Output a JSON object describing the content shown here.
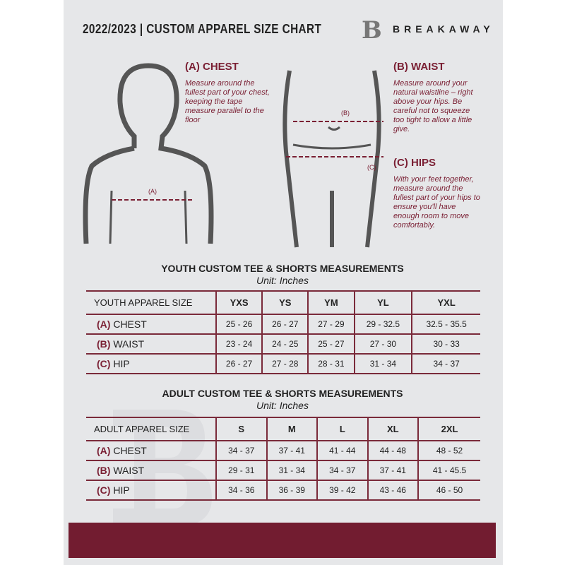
{
  "header": {
    "title": "2022/2023 | CUSTOM APPAREL SIZE CHART",
    "brand": "BREAKAWAY",
    "logo_letter": "B"
  },
  "chest": {
    "heading": "(A) CHEST",
    "text": "Measure around the fullest part of your chest, keeping the tape measure parallel to the floor",
    "marker": "(A)"
  },
  "waist": {
    "heading": "(B) WAIST",
    "text": "Measure around your natural waistline – right above your hips. Be careful not to squeeze too tight to allow a little give.",
    "marker": "(B)"
  },
  "hips": {
    "heading": "(C) HIPS",
    "text": "With your feet together, measure around the fullest part of your hips to ensure you'll have enough room to move comfortably.",
    "marker": "(C)"
  },
  "accent": "#7a1f33",
  "youth": {
    "title": "YOUTH CUSTOM TEE & SHORTS MEASUREMENTS",
    "unit": "Unit: Inches",
    "header": [
      "YOUTH APPAREL SIZE",
      "YXS",
      "YS",
      "YM",
      "YL",
      "YXL"
    ],
    "rows": [
      {
        "letter": "(A)",
        "label": "CHEST",
        "values": [
          "25 - 26",
          "26 - 27",
          "27 - 29",
          "29 - 32.5",
          "32.5 - 35.5"
        ]
      },
      {
        "letter": "(B)",
        "label": "WAIST",
        "values": [
          "23 - 24",
          "24 - 25",
          "25 - 27",
          "27 - 30",
          "30 - 33"
        ]
      },
      {
        "letter": "(C)",
        "label": "HIP",
        "values": [
          "26 - 27",
          "27 - 28",
          "28 - 31",
          "31 - 34",
          "34 - 37"
        ]
      }
    ]
  },
  "adult": {
    "title": "ADULT CUSTOM TEE & SHORTS MEASUREMENTS",
    "unit": "Unit: Inches",
    "header": [
      "ADULT APPAREL SIZE",
      "S",
      "M",
      "L",
      "XL",
      "2XL"
    ],
    "rows": [
      {
        "letter": "(A)",
        "label": "CHEST",
        "values": [
          "34 - 37",
          "37 - 41",
          "41 - 44",
          "44 - 48",
          "48 - 52"
        ]
      },
      {
        "letter": "(B)",
        "label": "WAIST",
        "values": [
          "29 - 31",
          "31 - 34",
          "34 - 37",
          "37 - 41",
          "41 - 45.5"
        ]
      },
      {
        "letter": "(C)",
        "label": "HIP",
        "values": [
          "34 - 36",
          "36 - 39",
          "39 - 42",
          "43 - 46",
          "46 - 50"
        ]
      }
    ]
  }
}
